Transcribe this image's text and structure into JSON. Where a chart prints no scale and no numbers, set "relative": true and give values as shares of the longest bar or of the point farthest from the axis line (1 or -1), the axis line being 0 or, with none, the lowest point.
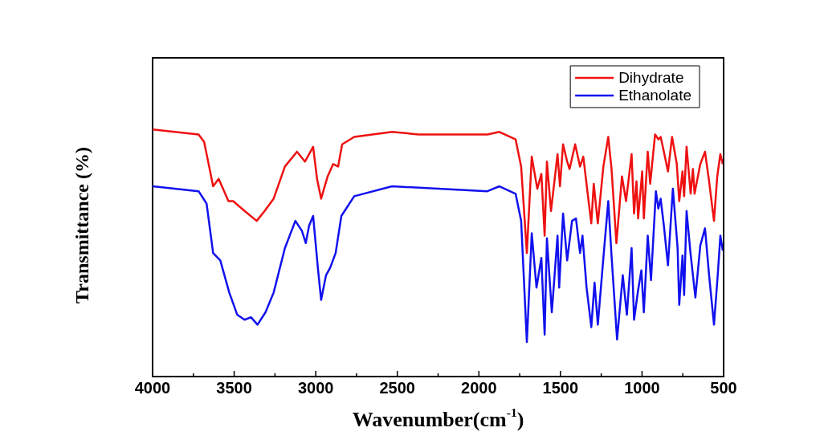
{
  "chart_data": {
    "type": "line",
    "relative": true,
    "xlabel": "Wavenumber(cm$^{-1}$)",
    "ylabel": "Transmittance (%)",
    "xlim": [
      4000,
      500
    ],
    "xticks": [
      4000,
      {
        "value": 3750,
        "label": null
      },
      3500,
      {
        "value": 3250,
        "label": null
      },
      3000,
      {
        "value": 2750,
        "label": null
      },
      2500,
      {
        "value": 2250,
        "label": null
      },
      2000,
      {
        "value": 1750,
        "label": null
      },
      1500,
      {
        "value": 1250,
        "label": null
      },
      1000,
      {
        "value": 750,
        "label": null
      },
      500
    ],
    "legend": "top right",
    "grid": false,
    "series": [
      {
        "name": "Dihydrate",
        "color": "#ee1111",
        "x": [
          4000,
          3718,
          3684,
          3629,
          3595,
          3535,
          3506,
          3436,
          3362,
          3313,
          3258,
          3189,
          3115,
          3066,
          3041,
          3016,
          2992,
          2967,
          2927,
          2893,
          2863,
          2838,
          2764,
          2532,
          2369,
          1948,
          1874,
          1775,
          1741,
          1706,
          1676,
          1642,
          1617,
          1597,
          1583,
          1558,
          1518,
          1503,
          1484,
          1459,
          1444,
          1410,
          1380,
          1360,
          1335,
          1311,
          1296,
          1271,
          1237,
          1207,
          1187,
          1157,
          1123,
          1098,
          1064,
          1049,
          1034,
          1024,
          999,
          989,
          965,
          950,
          920,
          900,
          886,
          866,
          841,
          816,
          787,
          772,
          752,
          742,
          727,
          702,
          688,
          678,
          643,
          614,
          589,
          559,
          539,
          520,
          505
        ],
        "values": [
          1,
          0.98,
          0.95,
          0.77,
          0.8,
          0.71,
          0.71,
          0.67,
          0.63,
          0.67,
          0.72,
          0.85,
          0.91,
          0.87,
          0.9,
          0.93,
          0.8,
          0.72,
          0.81,
          0.86,
          0.85,
          0.94,
          0.97,
          0.99,
          0.98,
          0.98,
          0.99,
          0.96,
          0.85,
          0.5,
          0.89,
          0.76,
          0.82,
          0.57,
          0.87,
          0.67,
          0.9,
          0.77,
          0.94,
          0.87,
          0.84,
          0.94,
          0.85,
          0.89,
          0.75,
          0.62,
          0.78,
          0.62,
          0.85,
          0.97,
          0.84,
          0.54,
          0.81,
          0.71,
          0.9,
          0.66,
          0.79,
          0.64,
          0.83,
          0.64,
          0.91,
          0.78,
          0.98,
          0.96,
          0.97,
          0.91,
          0.83,
          0.97,
          0.86,
          0.71,
          0.83,
          0.73,
          0.93,
          0.74,
          0.84,
          0.74,
          0.86,
          0.91,
          0.79,
          0.63,
          0.81,
          0.9,
          0.86
        ]
      },
      {
        "name": "Ethanolate",
        "color": "#1111ee",
        "x": [
          4000,
          3718,
          3669,
          3629,
          3585,
          3530,
          3481,
          3436,
          3397,
          3357,
          3308,
          3258,
          3189,
          3125,
          3085,
          3061,
          3041,
          3016,
          2987,
          2967,
          2937,
          2912,
          2878,
          2843,
          2764,
          2532,
          1948,
          1874,
          1775,
          1741,
          1706,
          1676,
          1647,
          1617,
          1597,
          1583,
          1553,
          1518,
          1508,
          1484,
          1459,
          1429,
          1405,
          1380,
          1365,
          1340,
          1311,
          1291,
          1271,
          1237,
          1207,
          1187,
          1153,
          1118,
          1093,
          1064,
          1049,
          1024,
          1004,
          989,
          965,
          945,
          915,
          900,
          886,
          866,
          841,
          811,
          782,
          772,
          752,
          742,
          727,
          703,
          673,
          643,
          614,
          589,
          559,
          535,
          520,
          505
        ],
        "values": [
          0.77,
          0.75,
          0.7,
          0.5,
          0.47,
          0.34,
          0.25,
          0.23,
          0.24,
          0.21,
          0.26,
          0.34,
          0.52,
          0.63,
          0.59,
          0.54,
          0.61,
          0.65,
          0.44,
          0.31,
          0.41,
          0.44,
          0.5,
          0.65,
          0.73,
          0.77,
          0.75,
          0.77,
          0.74,
          0.63,
          0.14,
          0.58,
          0.36,
          0.48,
          0.17,
          0.56,
          0.26,
          0.57,
          0.36,
          0.66,
          0.47,
          0.63,
          0.64,
          0.5,
          0.57,
          0.36,
          0.2,
          0.38,
          0.21,
          0.48,
          0.71,
          0.49,
          0.15,
          0.41,
          0.25,
          0.52,
          0.23,
          0.35,
          0.43,
          0.26,
          0.57,
          0.39,
          0.75,
          0.68,
          0.72,
          0.61,
          0.45,
          0.76,
          0.52,
          0.29,
          0.49,
          0.33,
          0.67,
          0.5,
          0.32,
          0.53,
          0.6,
          0.41,
          0.21,
          0.42,
          0.57,
          0.51
        ]
      }
    ]
  }
}
